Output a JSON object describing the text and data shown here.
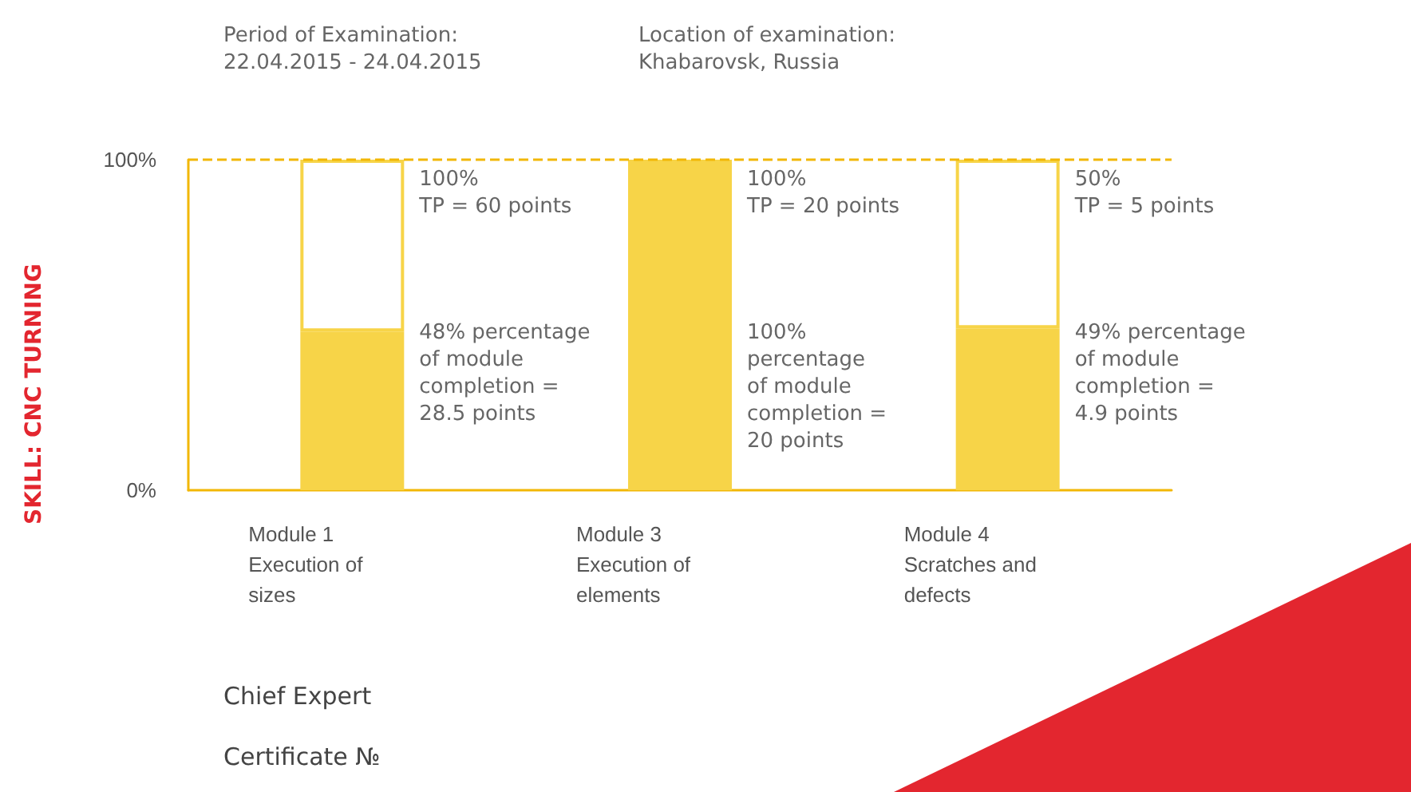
{
  "chart_data": {
    "type": "bar",
    "stacked": true,
    "categories": [
      "Module 1\nExecution of\nsizes",
      "Module 3\nExecution of\nelements",
      "Module 4\nScratches and\ndefects"
    ],
    "series": [
      {
        "color": "#f7d448",
        "values": [
          48,
          100,
          49
        ]
      },
      {
        "color": "#ffffff",
        "values": [
          52,
          null,
          51
        ]
      }
    ],
    "ylim": [
      0,
      100
    ],
    "yticks": [
      {
        "value": 0,
        "label": "0%"
      },
      {
        "value": 100,
        "label": "100%"
      }
    ],
    "grid": false,
    "ref_lines": [
      {
        "axis": "y",
        "value": 100,
        "color": "#f2b705",
        "line_style": "dashed"
      }
    ],
    "annotations": [
      "Period of Examination:\n22.04.2015 - 24.04.2015",
      "Location of examination:\nKhabarovsk, Russia",
      "100%\nTP = 60 points",
      "48% percentage\nof module\ncompletion =\n28.5 points",
      "100%\nTP = 20 points",
      "100%\npercentage\nof module\ncompletion =\n20 points",
      "50%\nTP = 5 points",
      "49% percentage\nof module\ncompletion =\n4.9 points",
      "Chief Expert",
      "Certificate №",
      "SKILL: CNC TURNING"
    ]
  }
}
